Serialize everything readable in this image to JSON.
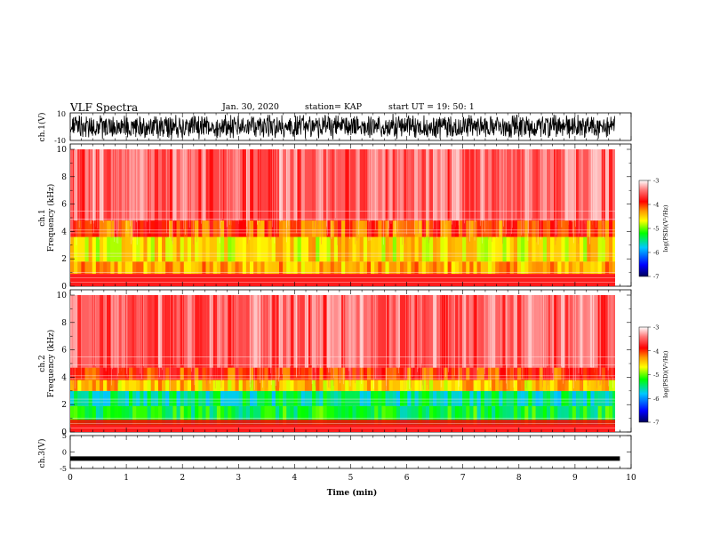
{
  "header": {
    "title": "VLF Spectra",
    "date": "Jan. 30, 2020",
    "station": "station= KAP",
    "start": "start  UT =   19: 50: 1"
  },
  "colors": {
    "spectrum_scale": [
      "#00005a",
      "#0000ff",
      "#00c8ff",
      "#00ff00",
      "#ffff00",
      "#ff9900",
      "#ff0000",
      "#ff6666",
      "#ffffff"
    ],
    "waveform": "#000000"
  },
  "chart_data": [
    {
      "type": "line",
      "panel": "ch1-waveform",
      "ylabel": "ch.1(V)",
      "ylim": [
        -10,
        10
      ],
      "yticks": [
        "10",
        "-10"
      ],
      "xlim": [
        0,
        10
      ],
      "description_values": {
        "amplitude_min": -10,
        "amplitude_max": 10
      }
    },
    {
      "type": "heatmap",
      "panel": "ch1-spectrogram",
      "ylabel_channel": "ch.1",
      "ylabel": "Frequency  (kHz)",
      "ylim": [
        0,
        10
      ],
      "yticks": [
        "0",
        "2",
        "4",
        "6",
        "8",
        "10"
      ],
      "xlim": [
        0,
        9.8
      ],
      "colorbar": {
        "label": "log(PSD)(V²/Hz)",
        "ticks": [
          "-3",
          "-4",
          "-5",
          "-6",
          "-7"
        ],
        "range": [
          -7,
          -3
        ]
      },
      "bands": [
        {
          "f_low": 0.9,
          "f_high": 1.8,
          "level": -4.4
        },
        {
          "f_low": 1.8,
          "f_high": 3.6,
          "level": -4.6
        },
        {
          "f_low": 3.6,
          "f_high": 4.8,
          "level": -4.1
        },
        {
          "f_low": 4.8,
          "f_high": 10,
          "level": -3.5
        }
      ]
    },
    {
      "type": "heatmap",
      "panel": "ch2-spectrogram",
      "ylabel_channel": "ch.2",
      "ylabel": "Frequency  (kHz)",
      "ylim": [
        0,
        10
      ],
      "yticks": [
        "0",
        "2",
        "4",
        "6",
        "8",
        "10"
      ],
      "xlim": [
        0,
        9.8
      ],
      "colorbar": {
        "label": "log(PSD)(V²/Hz)",
        "ticks": [
          "-3",
          "-4",
          "-5",
          "-6",
          "-7"
        ],
        "range": [
          -7,
          -3
        ]
      },
      "bands": [
        {
          "f_low": 0.5,
          "f_high": 1.9,
          "level": -5.3
        },
        {
          "f_low": 1.9,
          "f_high": 3.0,
          "level": -5.5
        },
        {
          "f_low": 3.0,
          "f_high": 3.8,
          "level": -4.5
        },
        {
          "f_low": 3.8,
          "f_high": 4.7,
          "level": -4.0
        },
        {
          "f_low": 4.7,
          "f_high": 10,
          "level": -3.5
        }
      ]
    },
    {
      "type": "line",
      "panel": "ch3-waveform",
      "ylabel": "ch.3(V)",
      "ylim": [
        -5,
        5
      ],
      "yticks": [
        "5",
        "0",
        "-5"
      ],
      "xlim": [
        0,
        10
      ],
      "xlabel": "Time  (min)",
      "xticks": [
        "0",
        "1",
        "2",
        "3",
        "4",
        "5",
        "6",
        "7",
        "8",
        "9",
        "10"
      ],
      "signal_level": -2
    }
  ]
}
